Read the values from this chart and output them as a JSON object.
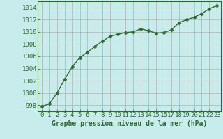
{
  "x": [
    0,
    1,
    2,
    3,
    4,
    5,
    6,
    7,
    8,
    9,
    10,
    11,
    12,
    13,
    14,
    15,
    16,
    17,
    18,
    19,
    20,
    21,
    22,
    23
  ],
  "y": [
    997.8,
    998.2,
    1000.0,
    1002.2,
    1004.3,
    1005.8,
    1006.7,
    1007.6,
    1008.5,
    1009.3,
    1009.6,
    1009.9,
    1010.0,
    1010.5,
    1010.2,
    1009.8,
    1009.9,
    1010.3,
    1011.5,
    1012.0,
    1012.4,
    1013.0,
    1013.8,
    1014.3
  ],
  "line_color": "#2d6a2d",
  "marker": "D",
  "marker_size": 2.5,
  "bg_color": "#c8ecec",
  "grid_color": "#b0b0b0",
  "xlabel": "Graphe pression niveau de la mer (hPa)",
  "xlabel_fontsize": 7,
  "xlabel_color": "#2d6a2d",
  "ylabel_ticks": [
    998,
    1000,
    1002,
    1004,
    1006,
    1008,
    1010,
    1012,
    1014
  ],
  "xlim": [
    -0.5,
    23.5
  ],
  "ylim": [
    997,
    1015
  ],
  "tick_fontsize": 6.5,
  "tick_color": "#2d6a2d",
  "line_width": 1.0
}
